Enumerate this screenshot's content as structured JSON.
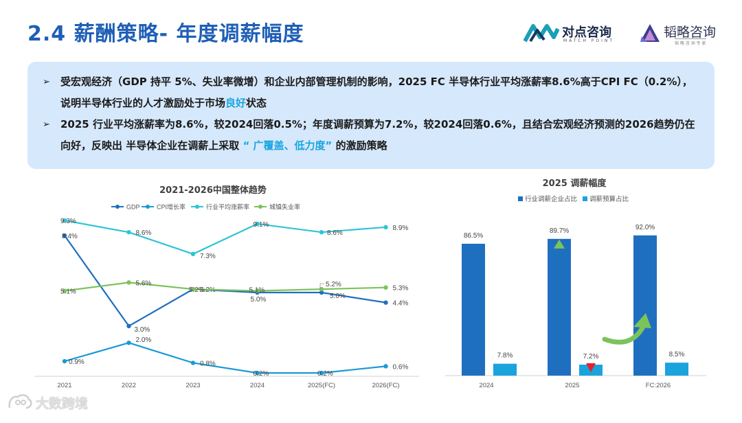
{
  "slide": {
    "title": "2.4 薪酬策略- 年度调薪幅度"
  },
  "logos": {
    "left": {
      "name": "对点咨询",
      "sub": "MATCH POINT"
    },
    "right": {
      "name": "韬略咨询",
      "sub": "韬 略 咨 询 专 家"
    }
  },
  "summary": {
    "bullet_symbol": "➢",
    "b1_text_1": "受宏观经济（GDP 持平 5%、失业率微增）和企业内部管理机制的影响，2025 FC 半导体行业平均涨薪率8.6%高于CPI FC（0.2%），说明半导体行业的人才激励处于市场",
    "b1_highlight": "良好",
    "b1_text_2": "状态",
    "b2_text_1": "2025 行业平均涨薪率为8.6%，较2024回落0.5%；年度调薪预算为7.2%，较2024回落0.6%，且结合宏观经济预测的2026趋势仍在向好，反映出 半导体企业在调薪上采取 ",
    "b2_highlight": "“ 广覆盖、低力度”",
    "b2_text_2": " 的激励策略"
  },
  "chart_data": [
    {
      "type": "line",
      "title": "2021-2026中国整体趋势",
      "categories": [
        "2021",
        "2022",
        "2023",
        "2024",
        "2025(FC)",
        "2026(FC)"
      ],
      "series": [
        {
          "name": "GDP",
          "color": "#1f6fc0",
          "values": [
            8.4,
            3.0,
            5.2,
            5.0,
            5.0,
            4.4
          ],
          "labels": [
            "8.4%",
            "3.0%",
            "5.2%",
            "5.0%",
            "5.0%",
            "4.4%"
          ]
        },
        {
          "name": "CPI增长率",
          "color": "#1a9ad6",
          "values": [
            0.9,
            2.0,
            0.8,
            0.2,
            0.2,
            0.6
          ],
          "labels": [
            "0.9%",
            "2.0%",
            "0.8%",
            "0.2%",
            "0.2%",
            "0.6%"
          ]
        },
        {
          "name": "行业平均涨薪率",
          "color": "#2ec4d6",
          "values": [
            9.3,
            8.6,
            7.3,
            9.1,
            8.6,
            8.9
          ],
          "labels": [
            "9.3%",
            "8.6%",
            "7.3%",
            "9.1%",
            "8.6%",
            "8.9%"
          ]
        },
        {
          "name": "城镇失业率",
          "color": "#7cc35a",
          "values": [
            5.1,
            5.6,
            5.2,
            5.1,
            5.2,
            5.3
          ],
          "labels": [
            "5.1%",
            "5.6%",
            "5.2%",
            "5.1%",
            "5.2%",
            "5.3%"
          ]
        }
      ],
      "ylim": [
        0,
        10
      ],
      "legend": "top",
      "grid": false
    },
    {
      "type": "bar",
      "title": "2025 调薪幅度",
      "categories": [
        "2024",
        "2025",
        "FC:2026"
      ],
      "series": [
        {
          "name": "行业调薪企业占比",
          "color": "#1f6fc0",
          "values": [
            86.5,
            89.7,
            92.0
          ],
          "labels": [
            "86.5%",
            "89.7%",
            "92.0%"
          ]
        },
        {
          "name": "调薪预算占比",
          "color": "#1aa3dd",
          "values": [
            7.8,
            7.2,
            8.5
          ],
          "labels": [
            "7.8%",
            "7.2%",
            "8.5%"
          ]
        }
      ],
      "ylim": [
        0,
        100
      ],
      "legend": "top",
      "grid": false,
      "annotations": [
        {
          "type": "up-triangle",
          "color": "#7cc35a",
          "category": "2025",
          "series": "行业调薪企业占比"
        },
        {
          "type": "down-triangle",
          "color": "#e8202a",
          "category": "2025",
          "series": "调薪预算占比"
        },
        {
          "type": "curved-arrow",
          "color": "#7cc35a",
          "category": "FC:2026"
        }
      ]
    }
  ],
  "watermark": {
    "text": "大数跨境"
  }
}
